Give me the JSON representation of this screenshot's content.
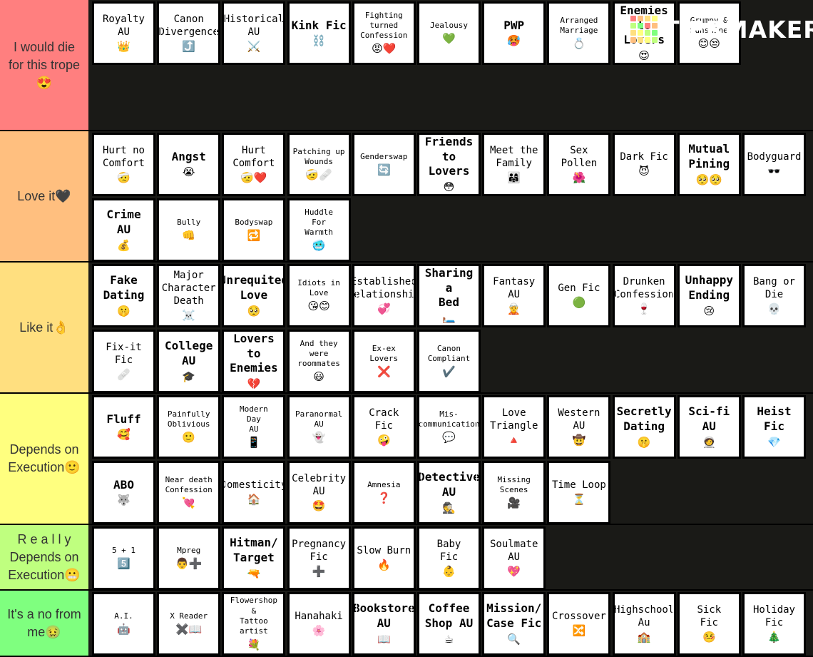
{
  "brand": {
    "name": "TiERMAKER",
    "grid_colors": [
      "#ff7f7f",
      "#ffbf7f",
      "#ffdf7f",
      "#ffff7f",
      "#bfff7f",
      "#7fff7f",
      "#ff7f7f",
      "#ffbf7f",
      "#ffdf7f",
      "#ffff7f",
      "#bfff7f",
      "#7fff7f",
      "#ffbf7f",
      "#ffdf7f",
      "#ffff7f",
      "#bfff7f"
    ]
  },
  "tiers": [
    {
      "label": "I would die\nfor this trope\n😍",
      "color": "#ff7f7f",
      "items": [
        {
          "label": "Royalty\nAU",
          "icon": "👑",
          "size": "m"
        },
        {
          "label": "Canon\nDivergence",
          "icon": "⤴️",
          "size": "m"
        },
        {
          "label": "Historical\nAU",
          "icon": "⚔️",
          "size": "m"
        },
        {
          "label": "Kink Fic",
          "icon": "⛓️",
          "size": "l"
        },
        {
          "label": "Fighting\nturned\nConfession",
          "icon": "😡❤️",
          "size": "s"
        },
        {
          "label": "Jealousy",
          "icon": "💚",
          "size": "s"
        },
        {
          "label": "PWP",
          "icon": "🥵",
          "size": "l"
        },
        {
          "label": "Arranged\nMarriage",
          "icon": "💍",
          "size": "s"
        },
        {
          "label": "Enemies\nto Lovers",
          "icon": "😍",
          "size": "l"
        },
        {
          "label": "Grumpy &\nSunshine",
          "icon": "😊😒",
          "size": "s"
        }
      ]
    },
    {
      "label": "Love it🖤",
      "color": "#ffbf7f",
      "items": [
        {
          "label": "Hurt no\nComfort",
          "icon": "🤕",
          "size": "m"
        },
        {
          "label": "Angst",
          "icon": "😭",
          "size": "l"
        },
        {
          "label": "Hurt\nComfort",
          "icon": "🤕❤️",
          "size": "m"
        },
        {
          "label": "Patching up\nWounds",
          "icon": "🤕🩹",
          "size": "s"
        },
        {
          "label": "Genderswap",
          "icon": "🔄",
          "size": "s"
        },
        {
          "label": "Friends\nto Lovers",
          "icon": "😳",
          "size": "l"
        },
        {
          "label": "Meet the\nFamily",
          "icon": "👨‍👩‍👧",
          "size": "m"
        },
        {
          "label": "Sex Pollen",
          "icon": "🌺",
          "size": "m"
        },
        {
          "label": "Dark Fic",
          "icon": "😈",
          "size": "m"
        },
        {
          "label": "Mutual\nPining",
          "icon": "🥺🥺",
          "size": "l"
        },
        {
          "label": "Bodyguard",
          "icon": "🕶️",
          "size": "m"
        },
        {
          "label": "Crime\nAU",
          "icon": "💰",
          "size": "l"
        },
        {
          "label": "Bully",
          "icon": "👊",
          "size": "s"
        },
        {
          "label": "Bodyswap",
          "icon": "🔁",
          "size": "s"
        },
        {
          "label": "Huddle\nFor\nWarmth",
          "icon": "🥶",
          "size": "s"
        }
      ]
    },
    {
      "label": "Like it👌",
      "color": "#ffdf7f",
      "items": [
        {
          "label": "Fake\nDating",
          "icon": "🤫",
          "size": "l"
        },
        {
          "label": "Major\nCharacter\nDeath",
          "icon": "☠️",
          "size": "m"
        },
        {
          "label": "Unrequited\nLove",
          "icon": "🥺",
          "size": "l"
        },
        {
          "label": "Idiots in\nLove",
          "icon": "😘😊",
          "size": "s"
        },
        {
          "label": "Established\nRelationship",
          "icon": "💞",
          "size": "m"
        },
        {
          "label": "Sharing a\nBed",
          "icon": "🛏️",
          "size": "l"
        },
        {
          "label": "Fantasy AU",
          "icon": "🧝",
          "size": "m"
        },
        {
          "label": "Gen Fic",
          "icon": "🟢",
          "size": "m"
        },
        {
          "label": "Drunken\nConfession",
          "icon": "🍷",
          "size": "m"
        },
        {
          "label": "Unhappy\nEnding",
          "icon": "😢",
          "size": "l"
        },
        {
          "label": "Bang or\nDie",
          "icon": "💀",
          "size": "m"
        },
        {
          "label": "Fix-it\nFic",
          "icon": "🩹",
          "size": "m"
        },
        {
          "label": "College\nAU",
          "icon": "🎓",
          "size": "l"
        },
        {
          "label": "Lovers to\nEnemies",
          "icon": "💔",
          "size": "l"
        },
        {
          "label": "And they\nwere\nroommates",
          "icon": "😃",
          "size": "s"
        },
        {
          "label": "Ex-ex\nLovers",
          "icon": "❌",
          "size": "s"
        },
        {
          "label": "Canon\nCompliant",
          "icon": "✔️",
          "size": "s"
        }
      ]
    },
    {
      "label": "Depends on\nExecution🙂",
      "color": "#ffff7f",
      "items": [
        {
          "label": "Fluff",
          "icon": "🥰",
          "size": "l"
        },
        {
          "label": "Painfully\nOblivious",
          "icon": "🙂",
          "size": "s"
        },
        {
          "label": "Modern\nDay\nAU",
          "icon": "📱",
          "size": "s"
        },
        {
          "label": "Paranormal\nAU",
          "icon": "👻",
          "size": "s"
        },
        {
          "label": "Crack\nFic",
          "icon": "🤪",
          "size": "m"
        },
        {
          "label": "Mis-\ncommunication",
          "icon": "💬",
          "size": "s"
        },
        {
          "label": "Love\nTriangle",
          "icon": "🔺",
          "size": "m"
        },
        {
          "label": "Western\nAU",
          "icon": "🤠",
          "size": "m"
        },
        {
          "label": "Secretly\nDating",
          "icon": "🤫",
          "size": "l"
        },
        {
          "label": "Sci-fi\nAU",
          "icon": "🧑‍🚀",
          "size": "l"
        },
        {
          "label": "Heist Fic",
          "icon": "💎",
          "size": "l"
        },
        {
          "label": "ABO",
          "icon": "🐺",
          "size": "l"
        },
        {
          "label": "Near death\nConfession",
          "icon": "💘",
          "size": "s"
        },
        {
          "label": "Domesticity",
          "icon": "🏠",
          "size": "m"
        },
        {
          "label": "Celebrity\nAU",
          "icon": "🤩",
          "size": "m"
        },
        {
          "label": "Amnesia",
          "icon": "❓",
          "size": "s"
        },
        {
          "label": "Detective\nAU",
          "icon": "🕵️",
          "size": "l"
        },
        {
          "label": "Missing\nScenes",
          "icon": "🎥",
          "size": "s"
        },
        {
          "label": "Time Loop",
          "icon": "⏳",
          "size": "m"
        }
      ]
    },
    {
      "label": "R e a l l y\nDepends on\nExecution😬",
      "color": "#bfff7f",
      "items": [
        {
          "label": "5 + 1",
          "icon": "5️⃣",
          "size": "s"
        },
        {
          "label": "Mpreg",
          "icon": "👨➕",
          "size": "s"
        },
        {
          "label": "Hitman/\nTarget",
          "icon": "🔫",
          "size": "l"
        },
        {
          "label": "Pregnancy\nFic",
          "icon": "➕",
          "size": "m"
        },
        {
          "label": "Slow Burn",
          "icon": "🔥",
          "size": "m"
        },
        {
          "label": "Baby\nFic",
          "icon": "👶",
          "size": "m"
        },
        {
          "label": "Soulmate\nAU",
          "icon": "💖",
          "size": "m"
        }
      ]
    },
    {
      "label": "It's a no from\nme🤢",
      "color": "#7fff7f",
      "items": [
        {
          "label": "A.I.",
          "icon": "🤖",
          "size": "s"
        },
        {
          "label": "X Reader",
          "icon": "✖️📖",
          "size": "s"
        },
        {
          "label": "Flowershop\n&\nTattoo artist",
          "icon": "💐",
          "size": "s"
        },
        {
          "label": "Hanahaki",
          "icon": "🌸",
          "size": "m"
        },
        {
          "label": "Bookstore\nAU",
          "icon": "📖",
          "size": "l"
        },
        {
          "label": "Coffee\nShop AU",
          "icon": "☕",
          "size": "l"
        },
        {
          "label": "Mission/\nCase Fic",
          "icon": "🔍",
          "size": "l"
        },
        {
          "label": "Crossover",
          "icon": "🔀",
          "size": "m"
        },
        {
          "label": "Highschool\nAu",
          "icon": "🏫",
          "size": "m"
        },
        {
          "label": "Sick\nFic",
          "icon": "🤒",
          "size": "m"
        },
        {
          "label": "Holiday Fic",
          "icon": "🎄",
          "size": "m"
        }
      ]
    }
  ]
}
